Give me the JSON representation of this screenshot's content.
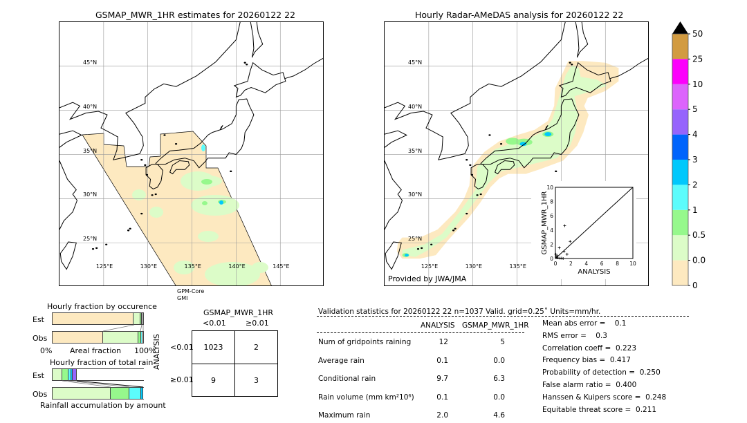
{
  "left_map": {
    "title": "GSMAP_MWR_1HR estimates for 20260122 22",
    "satellite": "GPM-Core",
    "sensor": "GMI",
    "lat_labels": [
      "45°N",
      "40°N",
      "35°N",
      "30°N",
      "25°N"
    ],
    "lon_labels": [
      "125°E",
      "130°E",
      "135°E",
      "140°E",
      "145°E"
    ]
  },
  "right_map": {
    "title": "Hourly Radar-AMeDAS analysis for 20260122 22",
    "credit": "Provided by JWA/JMA",
    "lat_labels": [
      "45°N",
      "40°N",
      "35°N",
      "30°N",
      "25°N"
    ],
    "lon_labels": [
      "125°E",
      "130°E",
      "135°E"
    ]
  },
  "colorbar": {
    "labels": [
      "0",
      "0.01",
      "0.5",
      "1",
      "2",
      "3",
      "4",
      "5",
      "10",
      "25",
      "50"
    ],
    "colors": [
      "#fde9c0",
      "#dcfcc8",
      "#96f88c",
      "#5cfcfc",
      "#00c8fc",
      "#0064fc",
      "#9664fc",
      "#dc64fc",
      "#fc00fc",
      "#d29b41"
    ],
    "extend_color": "#000000"
  },
  "chart_data": [
    {
      "type": "scatter",
      "xlabel": "ANALYSIS",
      "ylabel": "GSMAP_MWR_1HR",
      "xlim": [
        0,
        10
      ],
      "ylim": [
        0,
        10
      ],
      "xticks": [
        "0",
        "2",
        "4",
        "6",
        "8",
        "10"
      ],
      "yticks": [
        "0",
        "2",
        "4",
        "6",
        "8",
        "10"
      ],
      "points": [
        [
          1.2,
          4.6
        ],
        [
          1.9,
          2.4
        ],
        [
          0.5,
          1.5
        ],
        [
          1.1,
          1.0
        ],
        [
          1.5,
          0.6
        ],
        [
          0.2,
          0.4
        ],
        [
          0.1,
          0.2
        ],
        [
          0.3,
          0.1
        ],
        [
          0.6,
          0.05
        ],
        [
          0.8,
          0.05
        ],
        [
          1.0,
          0.0
        ],
        [
          0.05,
          0.6
        ]
      ],
      "diagonal": true
    },
    {
      "type": "bar",
      "title": "Hourly fraction by occurence",
      "categories": [
        "Est",
        "Obs"
      ],
      "xlabel": "Areal fraction",
      "xticks": [
        "0%",
        "100%"
      ],
      "series": [
        {
          "values": [
            0.895,
            0.556
          ]
        },
        {
          "values": [
            0.075,
            0.39
          ]
        },
        {
          "values": [
            0.018,
            0.03
          ]
        },
        {
          "values": [
            0.008,
            0.018
          ]
        }
      ],
      "colors": [
        "#fde9c0",
        "#dcfcc8",
        "#96f88c",
        "#5cfcfc"
      ]
    },
    {
      "type": "bar",
      "title": "Hourly fraction of total rain",
      "categories": [
        "Est",
        "Obs"
      ],
      "xlabel": "Rainfall accumulation by amount",
      "series": [
        {
          "values": [
            0.11,
            0.64
          ]
        },
        {
          "values": [
            0.07,
            0.2
          ]
        },
        {
          "values": [
            0.03,
            0.13
          ]
        },
        {
          "values": [
            0.015,
            0.025
          ]
        },
        {
          "values": [
            0.045,
            0.0
          ]
        }
      ],
      "colors": [
        "#dcfcc8",
        "#96f88c",
        "#5cfcfc",
        "#00c8fc",
        "#9664fc"
      ]
    }
  ],
  "contingency": {
    "title": "GSMAP_MWR_1HR",
    "col_labels": [
      "<0.01",
      "≥0.01"
    ],
    "row_title": "ANALYSIS",
    "row_labels": [
      "<0.01",
      "≥0.01"
    ],
    "cells": [
      [
        "1023",
        "2"
      ],
      [
        "9",
        "3"
      ]
    ]
  },
  "validation": {
    "header": "Validation statistics for 20260122 22  n=1037 Valid. grid=0.25˚ Units=mm/hr.",
    "col_analysis": "ANALYSIS",
    "col_gsmap": "GSMAP_MWR_1HR",
    "rows": [
      {
        "label": "Num of gridpoints raining",
        "analysis": "12",
        "gsmap": "5"
      },
      {
        "label": "Average rain",
        "analysis": "0.1",
        "gsmap": "0.0"
      },
      {
        "label": "Conditional rain",
        "analysis": "9.7",
        "gsmap": "6.3"
      },
      {
        "label": "Rain volume (mm km²10⁶)",
        "analysis": "0.1",
        "gsmap": "0.0"
      },
      {
        "label": "Maximum rain",
        "analysis": "2.0",
        "gsmap": "4.6"
      }
    ],
    "scores": [
      "Mean abs error =    0.1",
      "RMS error =    0.3",
      "Correlation coeff =  0.223",
      "Frequency bias =  0.417",
      "Probability of detection =  0.250",
      "False alarm ratio =  0.400",
      "Hanssen & Kuipers score =  0.248",
      "Equitable threat score =  0.211"
    ]
  }
}
